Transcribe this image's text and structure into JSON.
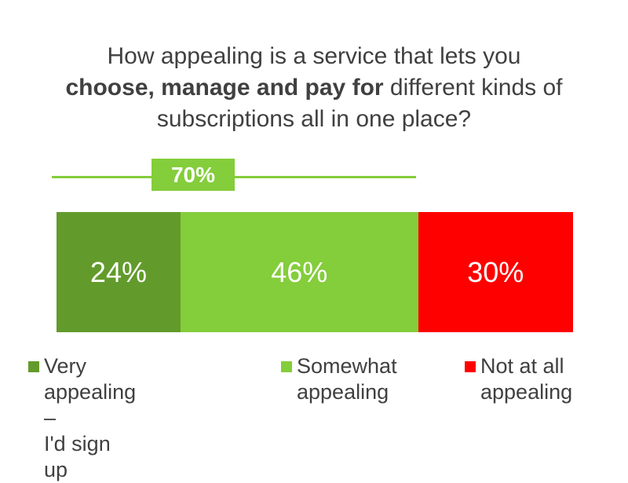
{
  "chart_data": {
    "type": "bar",
    "orientation": "horizontal-stacked",
    "title": {
      "part1": "How appealing is a service that lets you",
      "bold": "choose, manage and pay for",
      "part2": "different kinds of subscriptions all in one place?"
    },
    "series": [
      {
        "name": "Very appealing – I'd sign up",
        "value": 24,
        "label": "24%",
        "color": "#629b2b"
      },
      {
        "name": "Somewhat appealing",
        "value": 46,
        "label": "46%",
        "color": "#84cd3b"
      },
      {
        "name": "Not at all appealing",
        "value": 30,
        "label": "30%",
        "color": "#ff0000"
      }
    ],
    "total_appealing": {
      "label": "70%",
      "value": 70,
      "color": "#84cd3b"
    },
    "legend_placement": "bottom"
  },
  "legend": [
    {
      "line1": "Very appealing –",
      "line2": "I'd sign up",
      "color": "#629b2b"
    },
    {
      "line1": "Somewhat",
      "line2": "appealing",
      "color": "#84cd3b"
    },
    {
      "line1": "Not at all",
      "line2": "appealing",
      "color": "#ff0000"
    }
  ]
}
